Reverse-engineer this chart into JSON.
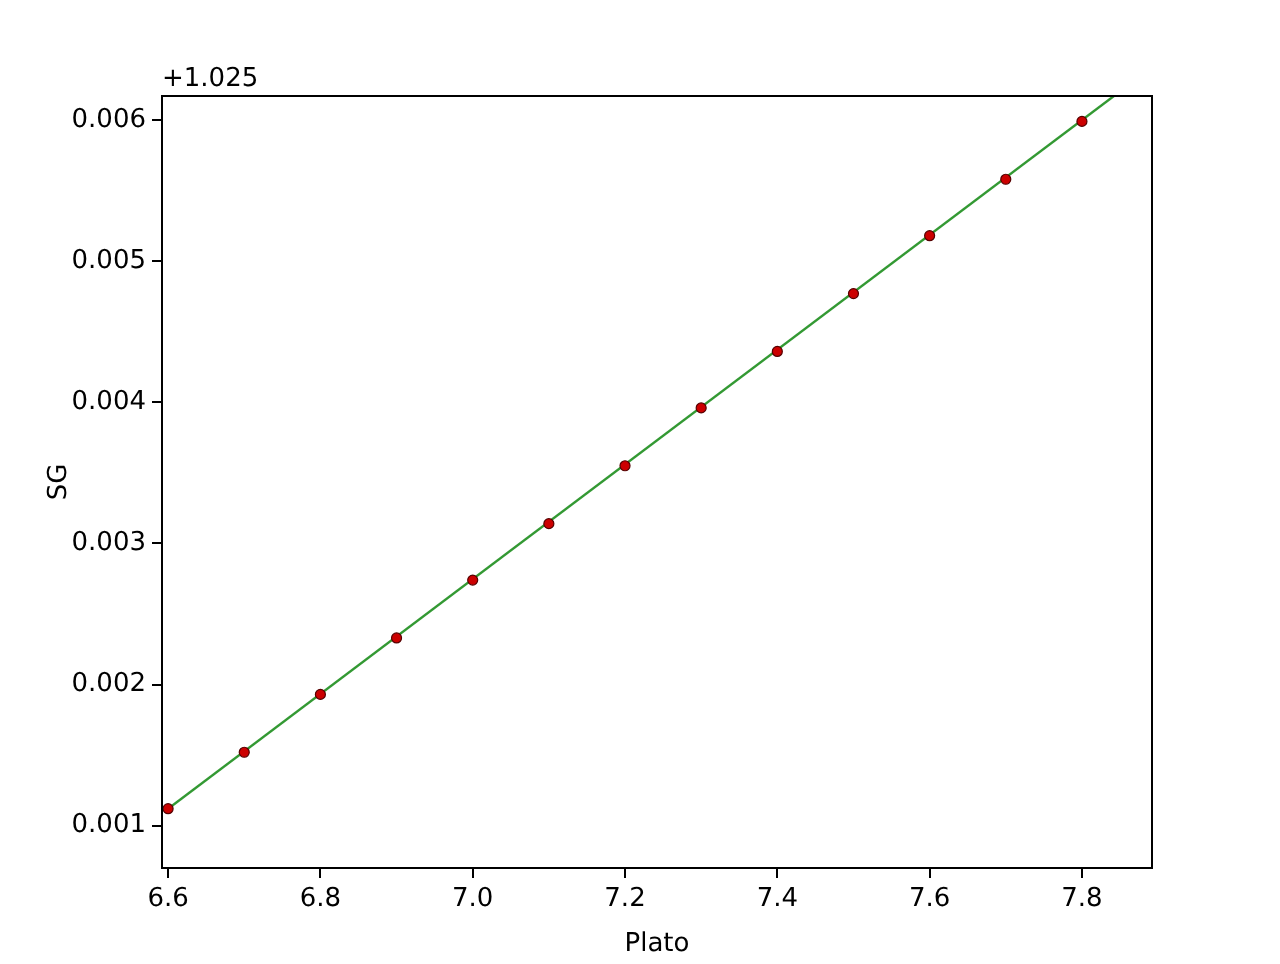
{
  "chart_data": {
    "type": "scatter",
    "xlabel": "Plato",
    "ylabel": "SG",
    "annotations": [
      "+1.025"
    ],
    "xlim": [
      6.592,
      7.892
    ],
    "xticks": [
      {
        "value": 6.6,
        "label": "6.6"
      },
      {
        "value": 6.8,
        "label": "6.8"
      },
      {
        "value": 7.0,
        "label": "7.0"
      },
      {
        "value": 7.2,
        "label": "7.2"
      },
      {
        "value": 7.4,
        "label": "7.4"
      },
      {
        "value": 7.6,
        "label": "7.6"
      },
      {
        "value": 7.8,
        "label": "7.8"
      }
    ],
    "ylim": [
      0.0007,
      0.00617
    ],
    "yticks": [
      0.001,
      0.002,
      0.003,
      0.004,
      0.005,
      0.006
    ],
    "grid": false,
    "legend": false,
    "series": [
      {
        "type": "line",
        "color": "#339933",
        "marker": "none",
        "x": [
          6.6,
          7.842
        ],
        "values": [
          0.00112,
          0.00617
        ]
      },
      {
        "color": "#cc0000",
        "marker": "circle",
        "x": [
          6.6,
          6.7,
          6.8,
          6.9,
          7.0,
          7.1,
          7.2,
          7.3,
          7.4,
          7.5,
          7.6,
          7.7,
          7.8
        ],
        "values": [
          0.00112,
          0.00152,
          0.00193,
          0.00233,
          0.00274,
          0.00314,
          0.00355,
          0.00396,
          0.00436,
          0.00477,
          0.00518,
          0.00558,
          0.00599
        ]
      }
    ]
  }
}
